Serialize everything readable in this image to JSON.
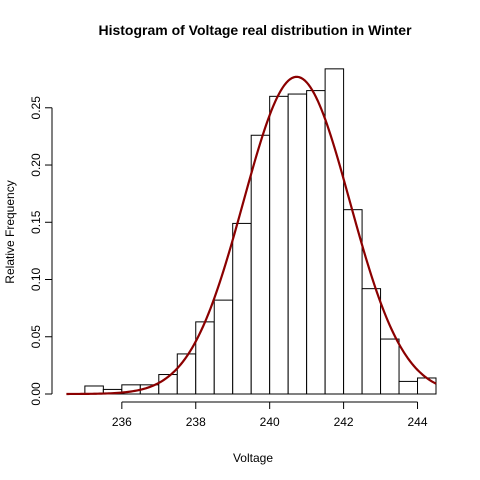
{
  "chart_data": {
    "type": "bar",
    "title": "Histogram of Voltage real distribution in Winter",
    "xlabel": "Voltage",
    "ylabel": "Relative Frequency",
    "xlim": [
      234.3,
      244.5
    ],
    "ylim": [
      0,
      0.283
    ],
    "x_ticks": [
      236,
      238,
      240,
      242,
      244
    ],
    "x_tick_labels": [
      "236",
      "238",
      "240",
      "242",
      "244"
    ],
    "y_ticks": [
      0.0,
      0.05,
      0.1,
      0.15,
      0.2,
      0.25
    ],
    "y_tick_labels": [
      "0.00",
      "0.05",
      "0.10",
      "0.15",
      "0.20",
      "0.25"
    ],
    "bins": [
      {
        "x0": 235.0,
        "x1": 235.5,
        "value": 0.007
      },
      {
        "x0": 235.5,
        "x1": 236.0,
        "value": 0.004
      },
      {
        "x0": 236.0,
        "x1": 236.5,
        "value": 0.008
      },
      {
        "x0": 236.5,
        "x1": 237.0,
        "value": 0.008
      },
      {
        "x0": 237.0,
        "x1": 237.5,
        "value": 0.017
      },
      {
        "x0": 237.5,
        "x1": 238.0,
        "value": 0.035
      },
      {
        "x0": 238.0,
        "x1": 238.5,
        "value": 0.063
      },
      {
        "x0": 238.5,
        "x1": 239.0,
        "value": 0.082
      },
      {
        "x0": 239.0,
        "x1": 239.5,
        "value": 0.149
      },
      {
        "x0": 239.5,
        "x1": 240.0,
        "value": 0.226
      },
      {
        "x0": 240.0,
        "x1": 240.5,
        "value": 0.26
      },
      {
        "x0": 240.5,
        "x1": 241.0,
        "value": 0.262
      },
      {
        "x0": 241.0,
        "x1": 241.5,
        "value": 0.265
      },
      {
        "x0": 241.5,
        "x1": 242.0,
        "value": 0.284
      },
      {
        "x0": 242.0,
        "x1": 242.5,
        "value": 0.161
      },
      {
        "x0": 242.5,
        "x1": 243.0,
        "value": 0.092
      },
      {
        "x0": 243.0,
        "x1": 243.5,
        "value": 0.048
      },
      {
        "x0": 243.5,
        "x1": 244.0,
        "value": 0.011
      },
      {
        "x0": 244.0,
        "x1": 244.5,
        "value": 0.014
      }
    ],
    "density_curve": {
      "type": "normal",
      "mean": 240.73,
      "sd": 1.44,
      "x_range": [
        234.5,
        244.5
      ],
      "color": "#8B0000"
    },
    "grid": false,
    "bar_fill": "#ffffff",
    "bar_stroke": "#000000"
  }
}
